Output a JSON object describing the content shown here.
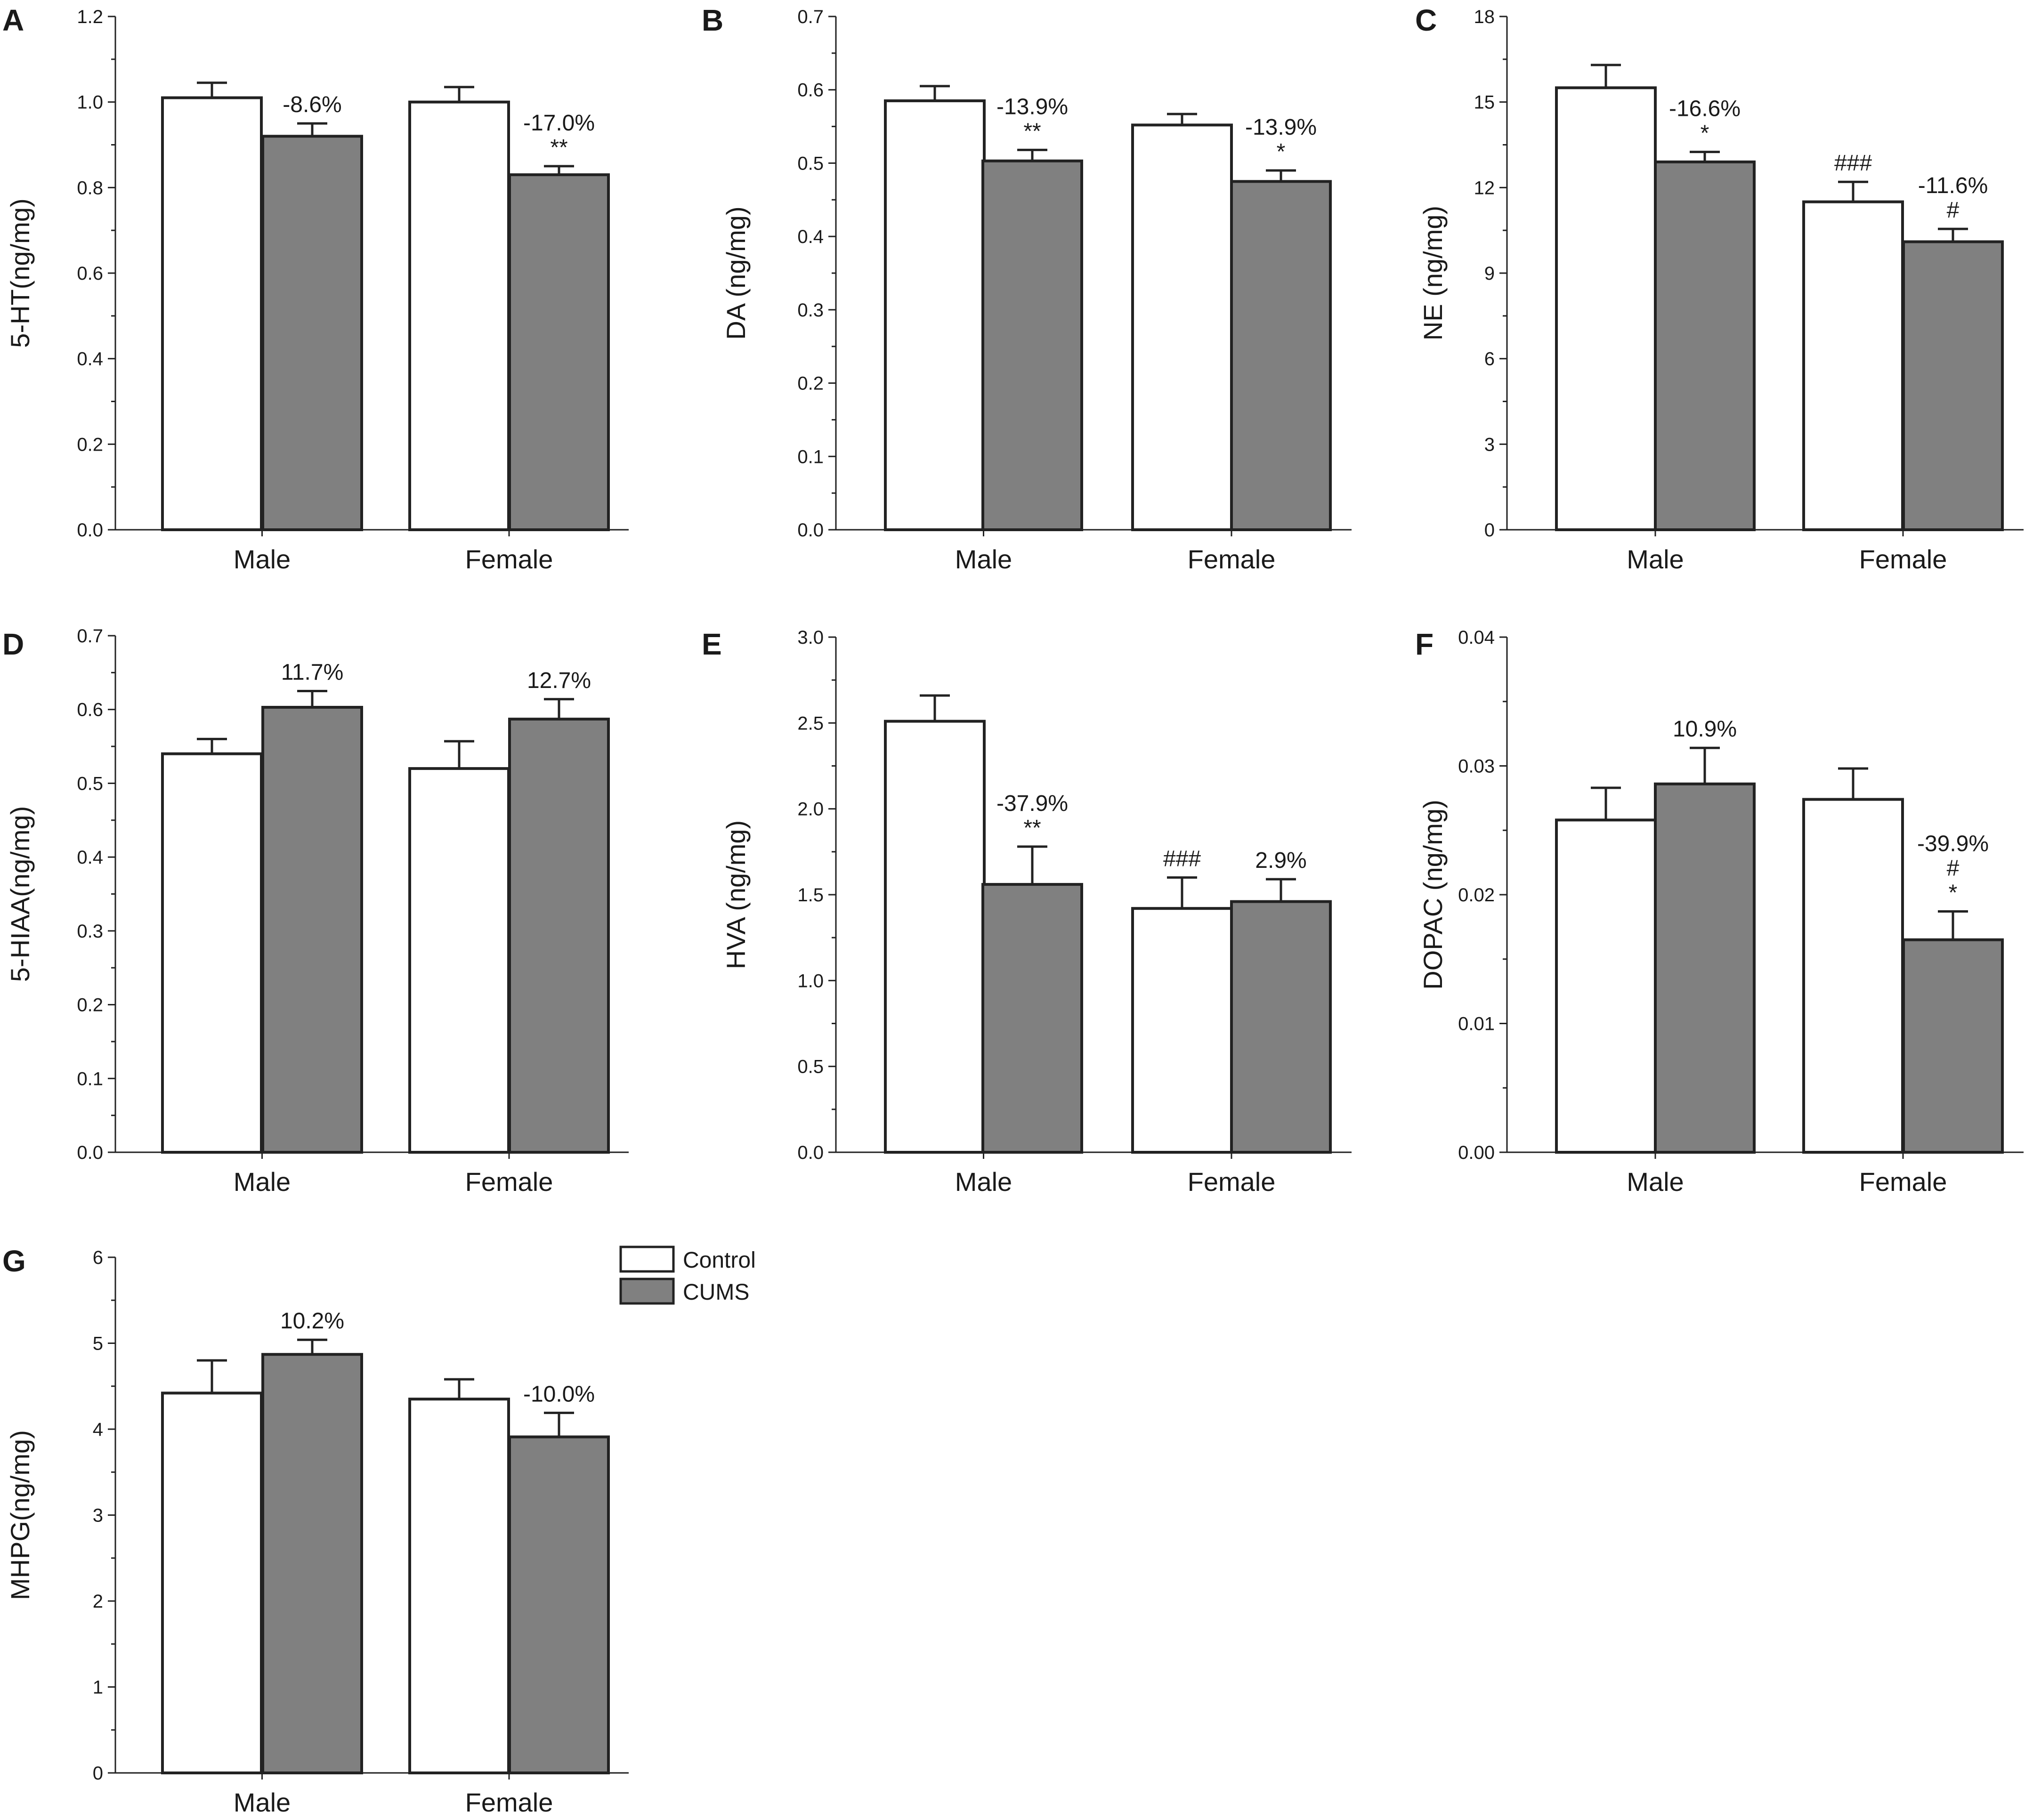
{
  "legend": {
    "items": [
      {
        "label": "Control",
        "color": "#ffffff"
      },
      {
        "label": "CUMS",
        "color": "#808080"
      }
    ]
  },
  "colors": {
    "control": "#ffffff",
    "cums": "#808080",
    "axis": "#222222"
  },
  "chart_data": [
    {
      "panel": "A",
      "type": "bar",
      "ylabel": "5-HT(ng/mg)",
      "ylim": [
        0,
        1.2
      ],
      "yticks": [
        "0.0",
        "0.2",
        "0.4",
        "0.6",
        "0.8",
        "1.0",
        "1.2"
      ],
      "categories": [
        "Male",
        "Female"
      ],
      "series": [
        {
          "name": "Control",
          "values": [
            1.01,
            1.0
          ],
          "errors": [
            0.035,
            0.035
          ]
        },
        {
          "name": "CUMS",
          "values": [
            0.92,
            0.83
          ],
          "errors": [
            0.03,
            0.02
          ]
        }
      ],
      "annotations": [
        {
          "category": 0,
          "series": 1,
          "lines": [
            "-8.6%"
          ]
        },
        {
          "category": 1,
          "series": 1,
          "lines": [
            "-17.0%",
            "**"
          ]
        }
      ]
    },
    {
      "panel": "B",
      "type": "bar",
      "ylabel": "DA (ng/mg)",
      "ylim": [
        0,
        0.7
      ],
      "yticks": [
        "0.0",
        "0.1",
        "0.2",
        "0.3",
        "0.4",
        "0.5",
        "0.6",
        "0.7"
      ],
      "categories": [
        "Male",
        "Female"
      ],
      "series": [
        {
          "name": "Control",
          "values": [
            0.585,
            0.552
          ],
          "errors": [
            0.02,
            0.015
          ]
        },
        {
          "name": "CUMS",
          "values": [
            0.503,
            0.475
          ],
          "errors": [
            0.015,
            0.015
          ]
        }
      ],
      "annotations": [
        {
          "category": 0,
          "series": 1,
          "lines": [
            "-13.9%",
            "**"
          ]
        },
        {
          "category": 1,
          "series": 1,
          "lines": [
            "-13.9%",
            "*"
          ]
        }
      ]
    },
    {
      "panel": "C",
      "type": "bar",
      "ylabel": "NE (ng/mg)",
      "ylim": [
        0,
        18
      ],
      "yticks": [
        "0",
        "3",
        "6",
        "9",
        "12",
        "15",
        "18"
      ],
      "categories": [
        "Male",
        "Female"
      ],
      "series": [
        {
          "name": "Control",
          "values": [
            15.5,
            11.5
          ],
          "errors": [
            0.8,
            0.7
          ]
        },
        {
          "name": "CUMS",
          "values": [
            12.9,
            10.1
          ],
          "errors": [
            0.35,
            0.45
          ]
        }
      ],
      "annotations": [
        {
          "category": 0,
          "series": 1,
          "lines": [
            "-16.6%",
            "*"
          ]
        },
        {
          "category": 1,
          "series": 0,
          "lines": [
            "###"
          ]
        },
        {
          "category": 1,
          "series": 1,
          "lines": [
            "-11.6%",
            "#"
          ]
        }
      ]
    },
    {
      "panel": "D",
      "type": "bar",
      "ylabel": "5-HIAA(ng/mg)",
      "ylim": [
        0,
        0.7
      ],
      "yticks": [
        "0.0",
        "0.1",
        "0.2",
        "0.3",
        "0.4",
        "0.5",
        "0.6",
        "0.7"
      ],
      "categories": [
        "Male",
        "Female"
      ],
      "series": [
        {
          "name": "Control",
          "values": [
            0.54,
            0.52
          ],
          "errors": [
            0.02,
            0.037
          ]
        },
        {
          "name": "CUMS",
          "values": [
            0.603,
            0.587
          ],
          "errors": [
            0.022,
            0.027
          ]
        }
      ],
      "annotations": [
        {
          "category": 0,
          "series": 1,
          "lines": [
            "11.7%"
          ]
        },
        {
          "category": 1,
          "series": 1,
          "lines": [
            "12.7%"
          ]
        }
      ]
    },
    {
      "panel": "E",
      "type": "bar",
      "ylabel": "HVA (ng/mg)",
      "ylim": [
        0,
        3.0
      ],
      "yticks": [
        "0.0",
        "0.5",
        "1.0",
        "1.5",
        "2.0",
        "2.5",
        "3.0"
      ],
      "categories": [
        "Male",
        "Female"
      ],
      "series": [
        {
          "name": "Control",
          "values": [
            2.51,
            1.42
          ],
          "errors": [
            0.15,
            0.18
          ]
        },
        {
          "name": "CUMS",
          "values": [
            1.56,
            1.46
          ],
          "errors": [
            0.22,
            0.13
          ]
        }
      ],
      "annotations": [
        {
          "category": 0,
          "series": 1,
          "lines": [
            "-37.9%",
            "**"
          ]
        },
        {
          "category": 1,
          "series": 0,
          "lines": [
            "###"
          ]
        },
        {
          "category": 1,
          "series": 1,
          "lines": [
            "2.9%"
          ]
        }
      ]
    },
    {
      "panel": "F",
      "type": "bar",
      "ylabel": "DOPAC (ng/mg)",
      "ylim": [
        0,
        0.04
      ],
      "yticks": [
        "0.00",
        "0.01",
        "0.02",
        "0.03",
        "0.04"
      ],
      "categories": [
        "Male",
        "Female"
      ],
      "series": [
        {
          "name": "Control",
          "values": [
            0.0258,
            0.0274
          ],
          "errors": [
            0.0025,
            0.0024
          ]
        },
        {
          "name": "CUMS",
          "values": [
            0.0286,
            0.0165
          ],
          "errors": [
            0.0028,
            0.0022
          ]
        }
      ],
      "annotations": [
        {
          "category": 0,
          "series": 1,
          "lines": [
            "10.9%"
          ]
        },
        {
          "category": 1,
          "series": 1,
          "lines": [
            "-39.9%",
            "#",
            "*"
          ]
        }
      ]
    },
    {
      "panel": "G",
      "type": "bar",
      "ylabel": "MHPG(ng/mg)",
      "ylim": [
        0,
        6
      ],
      "yticks": [
        "0",
        "1",
        "2",
        "3",
        "4",
        "5",
        "6"
      ],
      "categories": [
        "Male",
        "Female"
      ],
      "series": [
        {
          "name": "Control",
          "values": [
            4.42,
            4.35
          ],
          "errors": [
            0.38,
            0.23
          ]
        },
        {
          "name": "CUMS",
          "values": [
            4.87,
            3.91
          ],
          "errors": [
            0.17,
            0.28
          ]
        }
      ],
      "annotations": [
        {
          "category": 0,
          "series": 1,
          "lines": [
            "10.2%"
          ]
        },
        {
          "category": 1,
          "series": 1,
          "lines": [
            "-10.0%"
          ]
        }
      ]
    }
  ]
}
